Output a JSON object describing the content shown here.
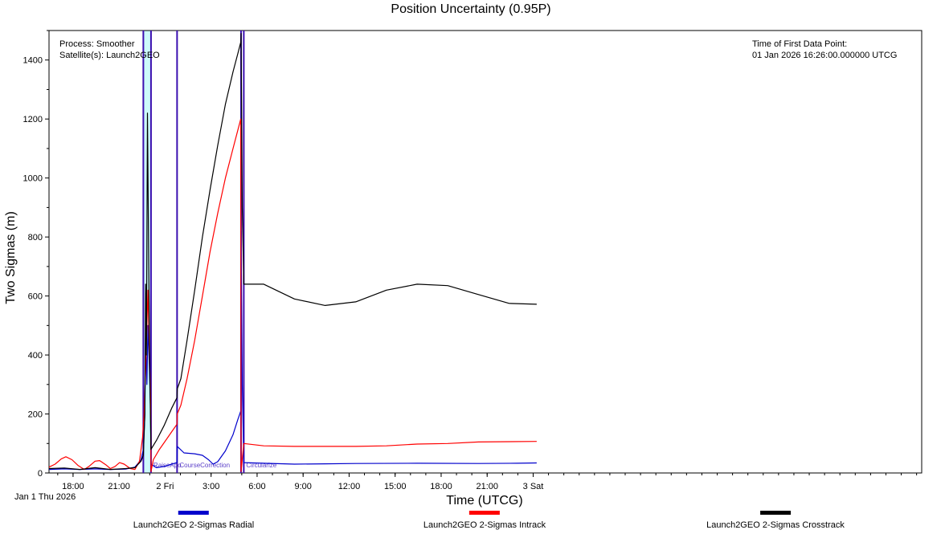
{
  "chart_data": {
    "type": "line",
    "title": "Position Uncertainty (0.95P)",
    "xlabel": "Time (UTCG)",
    "ylabel": "Two Sigmas (m)",
    "x_unit": "hours after Jan 1 2026 16:26 UTCG",
    "xlim": [
      0,
      56.9
    ],
    "ylim": [
      0,
      1500
    ],
    "yticks": [
      0,
      200,
      400,
      600,
      800,
      1000,
      1200,
      1400
    ],
    "xticks": [
      {
        "x": 1.567,
        "label": "18:00"
      },
      {
        "x": 4.567,
        "label": "21:00"
      },
      {
        "x": 7.567,
        "label": "2 Fri"
      },
      {
        "x": 10.567,
        "label": "3:00"
      },
      {
        "x": 13.567,
        "label": "6:00"
      },
      {
        "x": 16.567,
        "label": "9:00"
      },
      {
        "x": 19.567,
        "label": "12:00"
      },
      {
        "x": 22.567,
        "label": "15:00"
      },
      {
        "x": 25.567,
        "label": "18:00"
      },
      {
        "x": 28.567,
        "label": "21:00"
      },
      {
        "x": 31.567,
        "label": "3 Sat"
      }
    ],
    "start_label": "Jan 1 Thu 2026",
    "info_left": [
      "Process: Smoother",
      "Satellite(s): Launch2GEO"
    ],
    "info_right": [
      "Time of First Data Point:",
      "01 Jan 2026 16:26:00.000000 UTCG"
    ],
    "events": [
      {
        "x": 6.15,
        "label": "",
        "band_end": 6.65
      },
      {
        "x": 6.65,
        "label": "RaiseApo"
      },
      {
        "x": 8.35,
        "label": "CourseCorrection"
      },
      {
        "x": 12.52,
        "label": ""
      },
      {
        "x": 12.7,
        "label": "Circularize"
      }
    ],
    "colors": {
      "radial": "#0000cc",
      "intrack": "#ff0000",
      "crosstrack": "#000000",
      "event_line": "#3b0fb0",
      "band": "#cdfafa",
      "event_text": "#5a3ec8"
    },
    "series": [
      {
        "name": "Launch2GEO 2-Sigmas Radial",
        "color": "#0000cc",
        "points": [
          [
            0,
            12
          ],
          [
            1,
            14
          ],
          [
            2,
            12
          ],
          [
            3,
            14
          ],
          [
            4,
            12
          ],
          [
            5,
            13
          ],
          [
            5.6,
            20
          ],
          [
            6.0,
            45
          ],
          [
            6.15,
            80
          ],
          [
            6.25,
            200
          ],
          [
            6.3,
            490
          ],
          [
            6.38,
            300
          ],
          [
            6.45,
            500
          ],
          [
            6.55,
            350
          ],
          [
            6.62,
            200
          ],
          [
            6.65,
            30
          ],
          [
            7.0,
            18
          ],
          [
            7.5,
            22
          ],
          [
            8.0,
            30
          ],
          [
            8.34,
            35
          ],
          [
            8.36,
            90
          ],
          [
            8.8,
            68
          ],
          [
            9.5,
            65
          ],
          [
            10.0,
            60
          ],
          [
            10.4,
            45
          ],
          [
            10.7,
            30
          ],
          [
            11.0,
            38
          ],
          [
            11.5,
            75
          ],
          [
            12.0,
            130
          ],
          [
            12.3,
            180
          ],
          [
            12.5,
            210
          ],
          [
            12.52,
            820
          ],
          [
            12.6,
            300
          ],
          [
            12.7,
            35
          ],
          [
            14,
            33
          ],
          [
            16,
            30
          ],
          [
            18,
            31
          ],
          [
            20,
            32
          ],
          [
            24,
            33
          ],
          [
            28,
            32
          ],
          [
            30.5,
            33
          ],
          [
            31.8,
            34
          ]
        ]
      },
      {
        "name": "Launch2GEO 2-Sigmas Intrack",
        "color": "#ff0000",
        "points": [
          [
            0,
            20
          ],
          [
            0.4,
            30
          ],
          [
            0.8,
            48
          ],
          [
            1.1,
            55
          ],
          [
            1.5,
            45
          ],
          [
            1.9,
            25
          ],
          [
            2.3,
            12
          ],
          [
            2.6,
            22
          ],
          [
            3.0,
            40
          ],
          [
            3.3,
            42
          ],
          [
            3.7,
            28
          ],
          [
            4.0,
            15
          ],
          [
            4.3,
            22
          ],
          [
            4.6,
            35
          ],
          [
            4.9,
            30
          ],
          [
            5.3,
            15
          ],
          [
            5.6,
            12
          ],
          [
            5.9,
            40
          ],
          [
            6.1,
            120
          ],
          [
            6.2,
            200
          ],
          [
            6.3,
            350
          ],
          [
            6.45,
            620
          ],
          [
            6.55,
            400
          ],
          [
            6.62,
            250
          ],
          [
            6.65,
            5
          ],
          [
            6.8,
            45
          ],
          [
            7.2,
            80
          ],
          [
            7.6,
            110
          ],
          [
            8.0,
            140
          ],
          [
            8.34,
            165
          ],
          [
            8.36,
            200
          ],
          [
            8.6,
            230
          ],
          [
            9.0,
            320
          ],
          [
            9.5,
            450
          ],
          [
            10.0,
            600
          ],
          [
            10.5,
            750
          ],
          [
            11.0,
            880
          ],
          [
            11.5,
            1000
          ],
          [
            12.0,
            1100
          ],
          [
            12.5,
            1200
          ],
          [
            12.52,
            5
          ],
          [
            12.7,
            100
          ],
          [
            14,
            92
          ],
          [
            16,
            90
          ],
          [
            18,
            90
          ],
          [
            20,
            90
          ],
          [
            22,
            92
          ],
          [
            24,
            98
          ],
          [
            26,
            100
          ],
          [
            28,
            105
          ],
          [
            31.8,
            107
          ]
        ]
      },
      {
        "name": "Launch2GEO 2-Sigmas Crosstrack",
        "color": "#000000",
        "points": [
          [
            0,
            15
          ],
          [
            1,
            17
          ],
          [
            2,
            12
          ],
          [
            3,
            18
          ],
          [
            4,
            12
          ],
          [
            5,
            15
          ],
          [
            5.6,
            18
          ],
          [
            6.0,
            40
          ],
          [
            6.15,
            60
          ],
          [
            6.25,
            200
          ],
          [
            6.3,
            640
          ],
          [
            6.35,
            400
          ],
          [
            6.42,
            1220
          ],
          [
            6.5,
            700
          ],
          [
            6.58,
            300
          ],
          [
            6.65,
            80
          ],
          [
            7.0,
            110
          ],
          [
            7.5,
            160
          ],
          [
            8.0,
            220
          ],
          [
            8.34,
            255
          ],
          [
            8.36,
            285
          ],
          [
            8.6,
            320
          ],
          [
            9.0,
            450
          ],
          [
            9.5,
            620
          ],
          [
            10.0,
            800
          ],
          [
            10.5,
            960
          ],
          [
            11.0,
            1110
          ],
          [
            11.5,
            1250
          ],
          [
            12.0,
            1360
          ],
          [
            12.3,
            1420
          ],
          [
            12.5,
            1460
          ],
          [
            12.52,
            1490
          ],
          [
            12.6,
            900
          ],
          [
            12.7,
            640
          ],
          [
            14,
            640
          ],
          [
            16,
            590
          ],
          [
            18,
            568
          ],
          [
            20,
            580
          ],
          [
            22,
            620
          ],
          [
            24,
            640
          ],
          [
            26,
            635
          ],
          [
            28,
            605
          ],
          [
            30,
            575
          ],
          [
            31.8,
            572
          ]
        ]
      }
    ]
  }
}
